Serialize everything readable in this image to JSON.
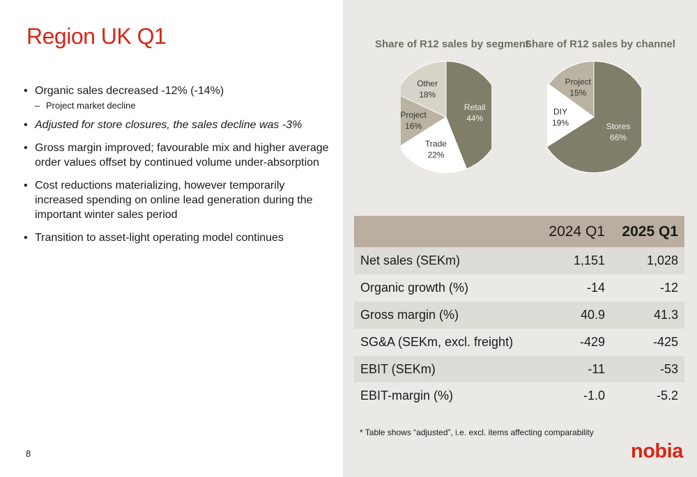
{
  "title": "Region UK Q1",
  "bullets": [
    {
      "text": "Organic sales decreased -12% (-14%)",
      "sub": "Project market decline"
    },
    {
      "text": "Adjusted for store closures, the sales decline was -3%"
    },
    {
      "text": "Gross margin improved; favourable mix and higher average order values offset by continued volume under-absorption"
    },
    {
      "text": "Cost reductions materializing, however temporarily increased spending on online lead generation during the important winter sales period"
    },
    {
      "text": "Transition to asset-light operating model continues"
    }
  ],
  "bullet_char": "•",
  "dash_char": "–",
  "page_number": "8",
  "chart_data": [
    {
      "type": "pie",
      "title": "Share of R12 sales by segment",
      "series": [
        {
          "name": "Retail",
          "value": 44,
          "label": "44%",
          "color": "#807d68"
        },
        {
          "name": "Trade",
          "value": 22,
          "label": "22%",
          "color": "#ffffff"
        },
        {
          "name": "Project",
          "value": 16,
          "label": "16%",
          "color": "#bab3a3"
        },
        {
          "name": "Other",
          "value": 18,
          "label": "18%",
          "color": "#d8d3c8"
        }
      ]
    },
    {
      "type": "pie",
      "title": "Share of R12 sales by channel",
      "series": [
        {
          "name": "Stores",
          "value": 66,
          "label": "66%",
          "color": "#807d68"
        },
        {
          "name": "DIY",
          "value": 19,
          "label": "19%",
          "color": "#ffffff"
        },
        {
          "name": "Project",
          "value": 15,
          "label": "15%",
          "color": "#bab3a3"
        }
      ]
    }
  ],
  "table": {
    "headers": [
      "",
      "2024 Q1",
      "2025 Q1"
    ],
    "rows": [
      [
        "Net sales (SEKm)",
        "1,151",
        "1,028"
      ],
      [
        "Organic growth (%)",
        "-14",
        "-12"
      ],
      [
        "Gross margin (%)",
        "40.9",
        "41.3"
      ],
      [
        "SG&A (SEKm, excl. freight)",
        "-429",
        "-425"
      ],
      [
        "EBIT (SEKm)",
        "-11",
        "-53"
      ],
      [
        "EBIT-margin (%)",
        "-1.0",
        "-5.2"
      ]
    ]
  },
  "footnote": "* Table shows “adjusted”, i.e. excl. items affecting comparability",
  "logo": "nobia",
  "colors": {
    "accent": "#d62718",
    "panel": "#eae9e5",
    "header_row": "#b9ae9f"
  }
}
